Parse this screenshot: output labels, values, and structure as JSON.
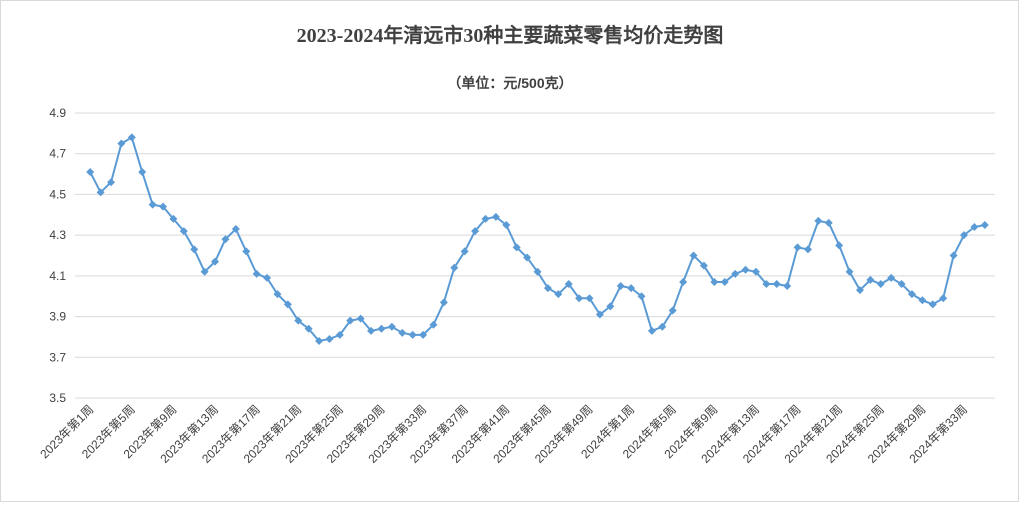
{
  "chart_data": {
    "type": "line",
    "title": "2023-2024年清远市30种主要蔬菜零售均价走势图",
    "subtitle": "（单位：元/500克）",
    "categories": [
      "2023年第1周",
      null,
      null,
      null,
      "2023年第5周",
      null,
      null,
      null,
      "2023年第9周",
      null,
      null,
      null,
      "2023年第13周",
      null,
      null,
      null,
      "2023年第17周",
      null,
      null,
      null,
      "2023年第21周",
      null,
      null,
      null,
      "2023年第25周",
      null,
      null,
      null,
      "2023年第29周",
      null,
      null,
      null,
      "2023年第33周",
      null,
      null,
      null,
      "2023年第37周",
      null,
      null,
      null,
      "2023年第41周",
      null,
      null,
      null,
      "2023年第45周",
      null,
      null,
      null,
      "2023年第49周",
      null,
      null,
      null,
      "2024年第1周",
      null,
      null,
      null,
      "2024年第5周",
      null,
      null,
      null,
      "2024年第9周",
      null,
      null,
      null,
      "2024年第13周",
      null,
      null,
      null,
      "2024年第17周",
      null,
      null,
      null,
      "2024年第21周",
      null,
      null,
      null,
      "2024年第25周",
      null,
      null,
      null,
      "2024年第29周",
      null,
      null,
      null,
      "2024年第33周",
      null,
      null
    ],
    "series": [
      {
        "color": "#5b9bd5",
        "values": [
          4.61,
          4.51,
          4.56,
          4.75,
          4.78,
          4.61,
          4.45,
          4.44,
          4.38,
          4.32,
          4.23,
          4.12,
          4.17,
          4.28,
          4.33,
          4.22,
          4.11,
          4.09,
          4.01,
          3.96,
          3.88,
          3.84,
          3.78,
          3.79,
          3.81,
          3.88,
          3.89,
          3.83,
          3.84,
          3.85,
          3.82,
          3.81,
          3.81,
          3.86,
          3.97,
          4.14,
          4.22,
          4.32,
          4.38,
          4.39,
          4.35,
          4.24,
          4.19,
          4.12,
          4.04,
          4.01,
          4.06,
          3.99,
          3.99,
          3.91,
          3.95,
          4.05,
          4.04,
          4.0,
          3.83,
          3.85,
          3.93,
          4.07,
          4.2,
          4.15,
          4.07,
          4.07,
          4.11,
          4.13,
          4.12,
          4.06,
          4.06,
          4.05,
          4.24,
          4.23,
          4.37,
          4.36,
          4.25,
          4.12,
          4.03,
          4.08,
          4.06,
          4.09,
          4.06,
          4.01,
          3.98,
          3.96,
          3.99,
          4.2,
          4.3,
          4.34,
          4.35
        ]
      }
    ],
    "ylim": [
      3.5,
      4.9
    ],
    "yticks": [
      3.5,
      3.7,
      3.9,
      4.1,
      4.3,
      4.5,
      4.7,
      4.9
    ],
    "grid": true
  }
}
